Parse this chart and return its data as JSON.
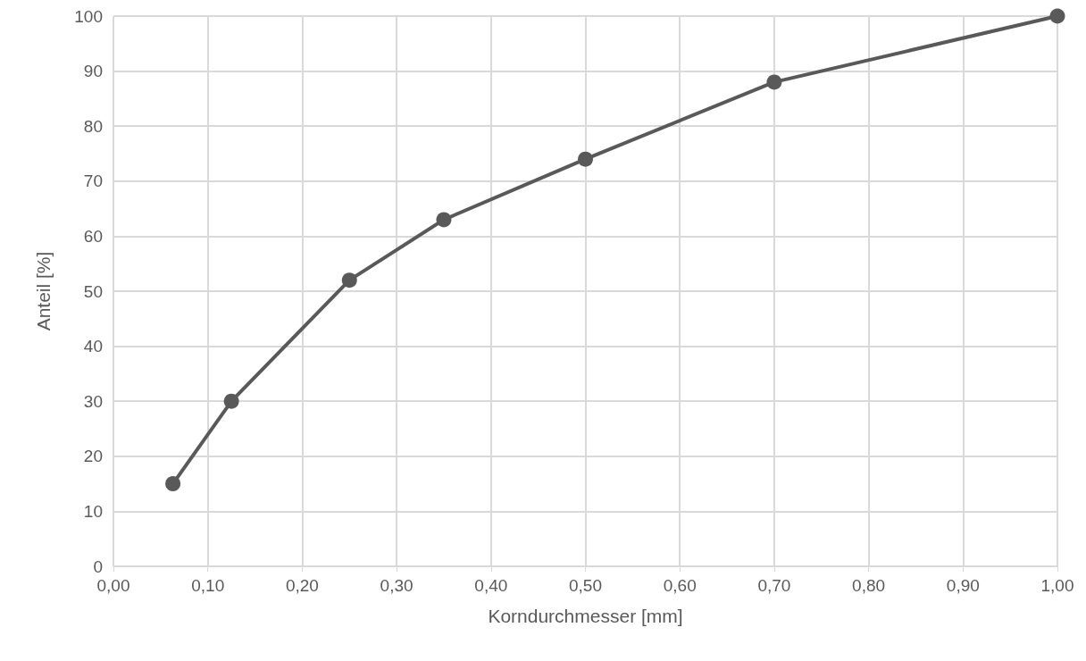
{
  "chart_data": {
    "type": "line",
    "xlabel": "Korndurchmesser [mm]",
    "ylabel": "Anteil [%]",
    "x": [
      0.063,
      0.125,
      0.25,
      0.35,
      0.5,
      0.7,
      1.0
    ],
    "series": [
      {
        "color": "#595959",
        "values": [
          15,
          30,
          52,
          63,
          74,
          88,
          100
        ]
      }
    ],
    "xlim": [
      0,
      1
    ],
    "xticks": [
      {
        "value": 0,
        "label": "0,00"
      },
      {
        "value": 0.1,
        "label": "0,10"
      },
      {
        "value": 0.2,
        "label": "0,20"
      },
      {
        "value": 0.3,
        "label": "0,30"
      },
      {
        "value": 0.4,
        "label": "0,40"
      },
      {
        "value": 0.5,
        "label": "0,50"
      },
      {
        "value": 0.6,
        "label": "0,60"
      },
      {
        "value": 0.7,
        "label": "0,70"
      },
      {
        "value": 0.8,
        "label": "0,80"
      },
      {
        "value": 0.9,
        "label": "0,90"
      },
      {
        "value": 1,
        "label": "1,00"
      }
    ],
    "ylim": [
      0,
      100
    ],
    "yticks": [
      0,
      10,
      20,
      30,
      40,
      50,
      60,
      70,
      80,
      90,
      100
    ],
    "grid": true,
    "marker": "circle",
    "line_style": "solid"
  }
}
